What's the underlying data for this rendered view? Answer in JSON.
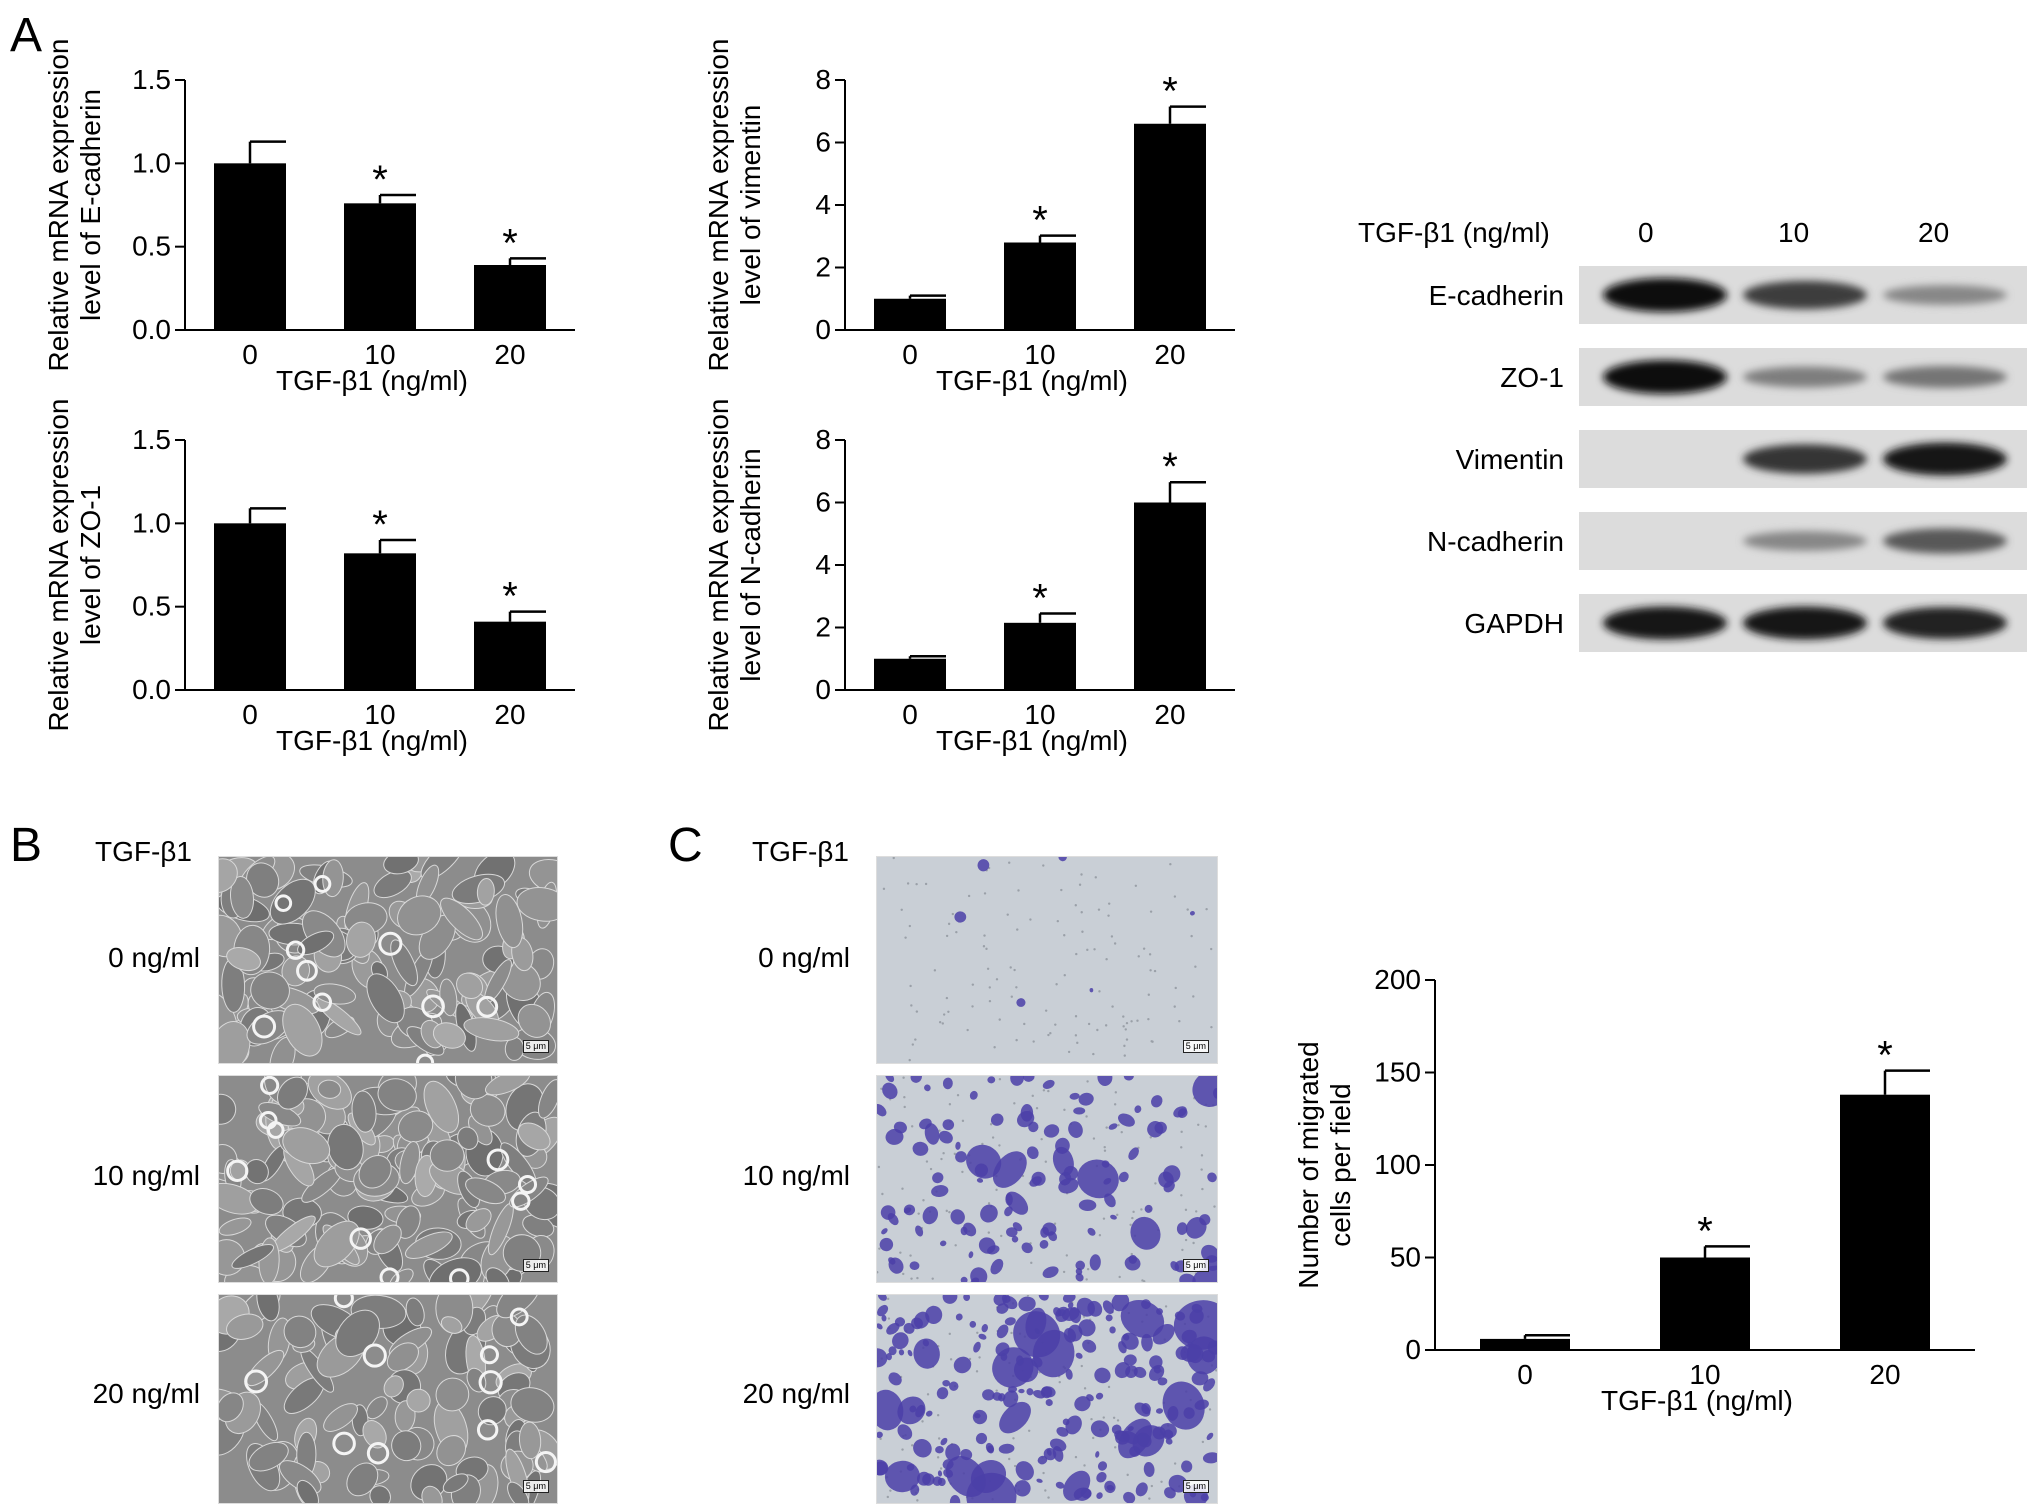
{
  "panels": {
    "A": "A",
    "B": "B",
    "C": "C"
  },
  "charts": [
    {
      "id": "ecad",
      "ylabel_lines": [
        "Relative mRNA expression",
        "level of E-cadherin"
      ],
      "xlabel": "TGF-β1 (ng/ml)",
      "categories": [
        "0",
        "10",
        "20"
      ],
      "values": [
        1.0,
        0.76,
        0.39
      ],
      "errors": [
        0.13,
        0.05,
        0.04
      ],
      "sig": [
        "",
        "*",
        "*"
      ],
      "yticks": [
        "0.0",
        "0.5",
        "1.0",
        "1.5"
      ],
      "ymax": 1.5
    },
    {
      "id": "vim",
      "ylabel_lines": [
        "Relative mRNA expression",
        "level of vimentin"
      ],
      "xlabel": "TGF-β1 (ng/ml)",
      "categories": [
        "0",
        "10",
        "20"
      ],
      "values": [
        1.0,
        2.8,
        6.6
      ],
      "errors": [
        0.1,
        0.22,
        0.55
      ],
      "sig": [
        "",
        "*",
        "*"
      ],
      "yticks": [
        "0",
        "2",
        "4",
        "6",
        "8"
      ],
      "ymax": 8
    },
    {
      "id": "zo1",
      "ylabel_lines": [
        "Relative mRNA expression",
        "level of ZO-1"
      ],
      "xlabel": "TGF-β1 (ng/ml)",
      "categories": [
        "0",
        "10",
        "20"
      ],
      "values": [
        1.0,
        0.82,
        0.41
      ],
      "errors": [
        0.09,
        0.08,
        0.06
      ],
      "sig": [
        "",
        "*",
        "*"
      ],
      "yticks": [
        "0.0",
        "0.5",
        "1.0",
        "1.5"
      ],
      "ymax": 1.5
    },
    {
      "id": "ncad",
      "ylabel_lines": [
        "Relative mRNA expression",
        "level of N-cadherin"
      ],
      "xlabel": "TGF-β1 (ng/ml)",
      "categories": [
        "0",
        "10",
        "20"
      ],
      "values": [
        1.0,
        2.15,
        6.0
      ],
      "errors": [
        0.08,
        0.3,
        0.65
      ],
      "sig": [
        "",
        "*",
        "*"
      ],
      "yticks": [
        "0",
        "2",
        "4",
        "6",
        "8"
      ],
      "ymax": 8
    },
    {
      "id": "mig",
      "ylabel_lines": [
        "Number of migrated",
        "cells per field"
      ],
      "xlabel": "TGF-β1 (ng/ml)",
      "categories": [
        "0",
        "10",
        "20"
      ],
      "values": [
        6,
        50,
        138
      ],
      "errors": [
        2,
        6,
        13
      ],
      "sig": [
        "",
        "*",
        "*"
      ],
      "yticks": [
        "0",
        "50",
        "100",
        "150",
        "200"
      ],
      "ymax": 200
    }
  ],
  "chart_data": [
    {
      "type": "bar",
      "categories": [
        "0",
        "10",
        "20"
      ],
      "values": [
        1.0,
        0.76,
        0.39
      ],
      "xlabel": "TGF-β1 (ng/ml)",
      "ylabel": "Relative mRNA expression level of E-cadherin",
      "ylim": [
        0,
        1.5
      ]
    },
    {
      "type": "bar",
      "categories": [
        "0",
        "10",
        "20"
      ],
      "values": [
        1.0,
        2.8,
        6.6
      ],
      "xlabel": "TGF-β1 (ng/ml)",
      "ylabel": "Relative mRNA expression level of vimentin",
      "ylim": [
        0,
        8
      ]
    },
    {
      "type": "bar",
      "categories": [
        "0",
        "10",
        "20"
      ],
      "values": [
        1.0,
        0.82,
        0.41
      ],
      "xlabel": "TGF-β1 (ng/ml)",
      "ylabel": "Relative mRNA expression level of ZO-1",
      "ylim": [
        0,
        1.5
      ]
    },
    {
      "type": "bar",
      "categories": [
        "0",
        "10",
        "20"
      ],
      "values": [
        1.0,
        2.15,
        6.0
      ],
      "xlabel": "TGF-β1 (ng/ml)",
      "ylabel": "Relative mRNA expression level of N-cadherin",
      "ylim": [
        0,
        8
      ]
    },
    {
      "type": "bar",
      "categories": [
        "0",
        "10",
        "20"
      ],
      "values": [
        6,
        50,
        138
      ],
      "xlabel": "TGF-β1 (ng/ml)",
      "ylabel": "Number of migrated cells per field",
      "ylim": [
        0,
        200
      ]
    }
  ],
  "western": {
    "header_label": "TGF-β1 (ng/ml)",
    "lanes": [
      "0",
      "10",
      "20"
    ],
    "rows": [
      {
        "label": "E-cadherin",
        "intensity": [
          1.0,
          0.75,
          0.35
        ]
      },
      {
        "label": "ZO-1",
        "intensity": [
          1.0,
          0.4,
          0.45
        ]
      },
      {
        "label": "Vimentin",
        "intensity": [
          0.0,
          0.8,
          0.95
        ]
      },
      {
        "label": "N-cadherin",
        "intensity": [
          0.0,
          0.35,
          0.6
        ]
      },
      {
        "label": "GAPDH",
        "intensity": [
          0.95,
          0.95,
          0.9
        ]
      }
    ]
  },
  "panelB": {
    "header": "TGF-β1",
    "rows": [
      "0 ng/ml",
      "10 ng/ml",
      "20 ng/ml"
    ],
    "scale": "5 μm"
  },
  "panelC": {
    "header": "TGF-β1",
    "rows": [
      "0 ng/ml",
      "10 ng/ml",
      "20 ng/ml"
    ],
    "scale": "5 μm"
  },
  "colors": {
    "bar": "#000000",
    "blot_bg": "#dcdcdc",
    "stain": "#4b3fa8",
    "phase_bg": "#8c8c8c",
    "transwell_bg": "#c9cfd6"
  }
}
